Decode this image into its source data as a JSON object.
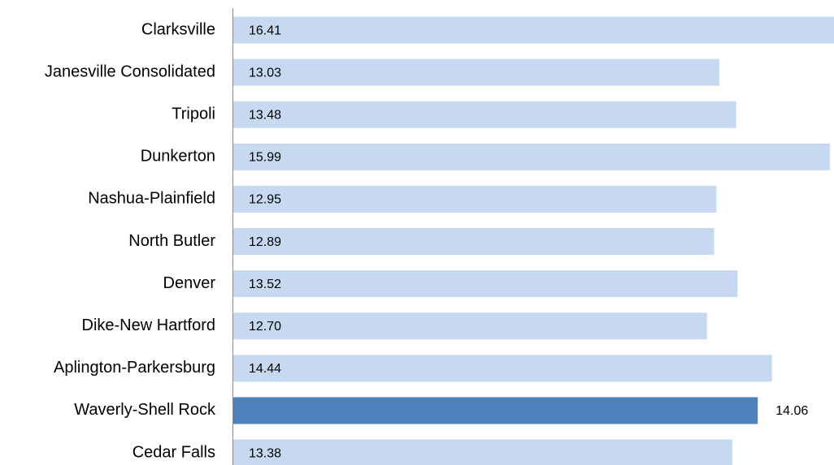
{
  "chart_data": {
    "type": "hbar",
    "categories": [
      "Clarksville",
      "Janesville Consolidated",
      "Tripoli",
      "Dunkerton",
      "Nashua-Plainfield",
      "North Butler",
      "Denver",
      "Dike-New Hartford",
      "Aplington-Parkersburg",
      "Waverly-Shell Rock",
      "Cedar Falls"
    ],
    "values": [
      16.41,
      13.03,
      13.48,
      15.99,
      12.95,
      12.89,
      13.52,
      12.7,
      14.44,
      14.06,
      13.38
    ],
    "value_labels": [
      "16.41",
      "13.03",
      "13.48",
      "15.99",
      "12.95",
      "12.89",
      "13.52",
      "12.70",
      "14.44",
      "14.06",
      "13.38"
    ],
    "color": "#c6d9f1",
    "colors": [
      "#c6d9f1",
      "#c6d9f1",
      "#c6d9f1",
      "#c6d9f1",
      "#c6d9f1",
      "#c6d9f1",
      "#c6d9f1",
      "#c6d9f1",
      "#c6d9f1",
      "#4f81bd",
      "#c6d9f1"
    ],
    "xlim": [
      0,
      16.1
    ]
  }
}
